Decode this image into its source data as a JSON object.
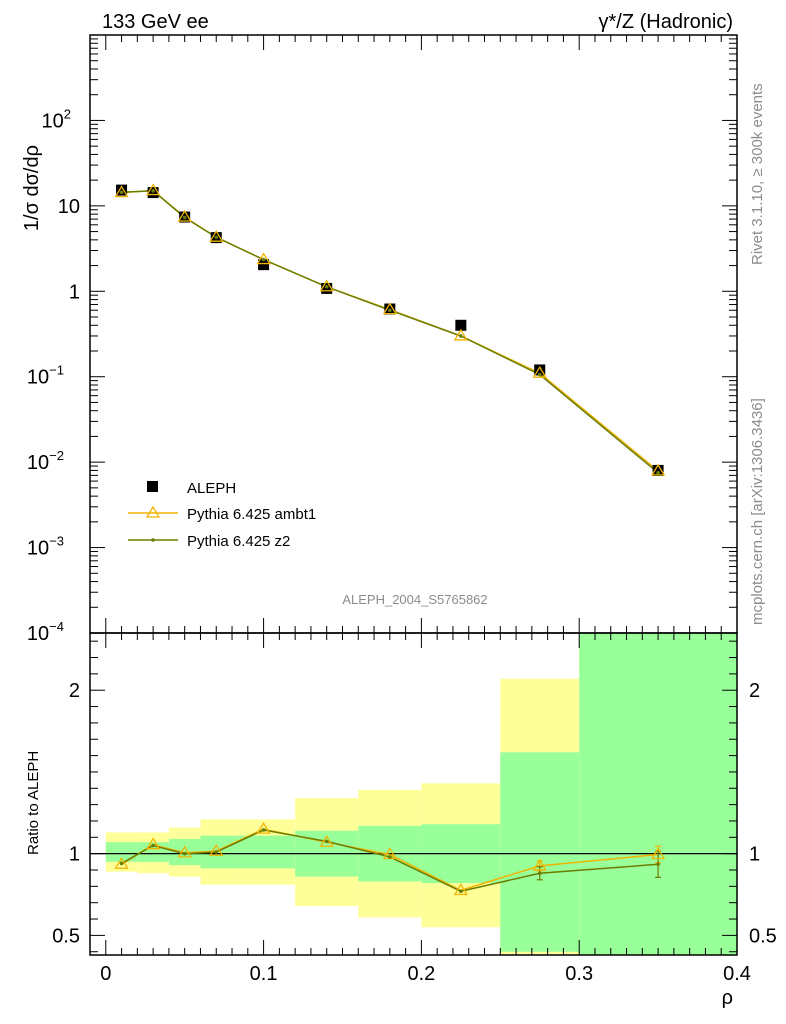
{
  "header": {
    "left_label": "133 GeV ee",
    "right_label": "γ*/Z (Hadronic)"
  },
  "side_labels": {
    "rivet": "Rivet 3.1.10, ≥ 300k events",
    "mcplots": "mcplots.cern.ch [arXiv:1306.3436]"
  },
  "analysis_id": "ALEPH_2004_S5765862",
  "colors": {
    "data": "#000000",
    "ambt1": "#f0b400",
    "z2": "#6b7d00",
    "band_inner": "#99ff99",
    "band_outer": "#ffff99"
  },
  "chart_data": [
    {
      "type": "scatter",
      "ylabel": "1/σ dσ/dρ",
      "yscale": "log",
      "ylim": [
        0.0001,
        1000
      ],
      "xlim": [
        -0.01,
        0.4
      ],
      "yticks": [
        {
          "value": 0.0001,
          "base": "10",
          "exp": "−4"
        },
        {
          "value": 0.001,
          "base": "10",
          "exp": "−3"
        },
        {
          "value": 0.01,
          "base": "10",
          "exp": "−2"
        },
        {
          "value": 0.1,
          "base": "10",
          "exp": "−1"
        },
        {
          "value": 1,
          "base": "1",
          "exp": ""
        },
        {
          "value": 10,
          "base": "10",
          "exp": ""
        },
        {
          "value": 100,
          "base": "10",
          "exp": "2"
        }
      ],
      "legend": {
        "placement": "bottom-left",
        "entries": [
          "ALEPH",
          "Pythia 6.425 ambt1",
          "Pythia 6.425 z2"
        ]
      },
      "series": [
        {
          "name": "ALEPH",
          "x": [
            0.01,
            0.03,
            0.05,
            0.07,
            0.1,
            0.14,
            0.18,
            0.225,
            0.275,
            0.35
          ],
          "y": [
            15.3,
            14.3,
            7.4,
            4.25,
            2.05,
            1.08,
            0.62,
            0.4,
            0.12,
            0.008
          ]
        },
        {
          "name": "Pythia 6.425 ambt1",
          "x": [
            0.01,
            0.03,
            0.05,
            0.07,
            0.1,
            0.14,
            0.18,
            0.225,
            0.275,
            0.35
          ],
          "y": [
            14.3,
            15.1,
            7.4,
            4.3,
            2.35,
            1.13,
            0.61,
            0.3,
            0.11,
            0.0079
          ]
        },
        {
          "name": "Pythia 6.425 z2",
          "x": [
            0.01,
            0.03,
            0.05,
            0.07,
            0.1,
            0.14,
            0.18,
            0.225,
            0.275,
            0.35
          ],
          "y": [
            14.4,
            15.0,
            7.3,
            4.3,
            2.35,
            1.13,
            0.6,
            0.3,
            0.106,
            0.0075
          ]
        }
      ]
    },
    {
      "type": "line",
      "ylabel": "Ratio to ALEPH",
      "xlabel": "ρ",
      "ylim": [
        0.38,
        2.35
      ],
      "xlim": [
        -0.01,
        0.4
      ],
      "xticks": [
        {
          "value": 0,
          "label": "0"
        },
        {
          "value": 0.1,
          "label": "0.1"
        },
        {
          "value": 0.2,
          "label": "0.2"
        },
        {
          "value": 0.3,
          "label": "0.3"
        },
        {
          "value": 0.4,
          "label": "0.4"
        }
      ],
      "yticks": [
        {
          "value": 0.5,
          "label": "0.5"
        },
        {
          "value": 1,
          "label": "1"
        },
        {
          "value": 2,
          "label": "2"
        }
      ],
      "reference_line": 1,
      "bins": [
        {
          "x0": 0.0,
          "x1": 0.02,
          "inner": [
            0.95,
            1.07
          ],
          "outer": [
            0.89,
            1.13
          ]
        },
        {
          "x0": 0.02,
          "x1": 0.04,
          "inner": [
            0.95,
            1.07
          ],
          "outer": [
            0.88,
            1.13
          ]
        },
        {
          "x0": 0.04,
          "x1": 0.06,
          "inner": [
            0.93,
            1.09
          ],
          "outer": [
            0.86,
            1.16
          ]
        },
        {
          "x0": 0.06,
          "x1": 0.08,
          "inner": [
            0.91,
            1.11
          ],
          "outer": [
            0.81,
            1.21
          ]
        },
        {
          "x0": 0.08,
          "x1": 0.12,
          "inner": [
            0.91,
            1.11
          ],
          "outer": [
            0.81,
            1.21
          ]
        },
        {
          "x0": 0.12,
          "x1": 0.16,
          "inner": [
            0.86,
            1.14
          ],
          "outer": [
            0.68,
            1.34
          ]
        },
        {
          "x0": 0.16,
          "x1": 0.2,
          "inner": [
            0.83,
            1.17
          ],
          "outer": [
            0.61,
            1.39
          ]
        },
        {
          "x0": 0.2,
          "x1": 0.25,
          "inner": [
            0.82,
            1.18
          ],
          "outer": [
            0.55,
            1.43
          ]
        },
        {
          "x0": 0.25,
          "x1": 0.3,
          "inner": [
            0.4,
            1.62
          ],
          "outer": [
            0.38,
            2.07
          ]
        },
        {
          "x0": 0.3,
          "x1": 0.4,
          "inner": [
            0.38,
            2.35
          ],
          "outer": [
            0.38,
            2.35
          ]
        }
      ],
      "series": [
        {
          "name": "Pythia 6.425 ambt1",
          "x": [
            0.01,
            0.03,
            0.05,
            0.07,
            0.1,
            0.14,
            0.18,
            0.225,
            0.275,
            0.35
          ],
          "y": [
            0.935,
            1.055,
            1.005,
            1.015,
            1.15,
            1.07,
            0.995,
            0.775,
            0.925,
            0.995
          ],
          "yerr": [
            0,
            0,
            0,
            0,
            0,
            0,
            0,
            0,
            0.03,
            0.05
          ]
        },
        {
          "name": "Pythia 6.425 z2",
          "x": [
            0.01,
            0.03,
            0.05,
            0.07,
            0.1,
            0.14,
            0.18,
            0.225,
            0.275,
            0.35
          ],
          "y": [
            0.94,
            1.05,
            1.0,
            1.01,
            1.145,
            1.075,
            0.98,
            0.77,
            0.88,
            0.935
          ],
          "yerr": [
            0,
            0,
            0,
            0,
            0,
            0,
            0,
            0,
            0.04,
            0.08
          ]
        }
      ]
    }
  ]
}
